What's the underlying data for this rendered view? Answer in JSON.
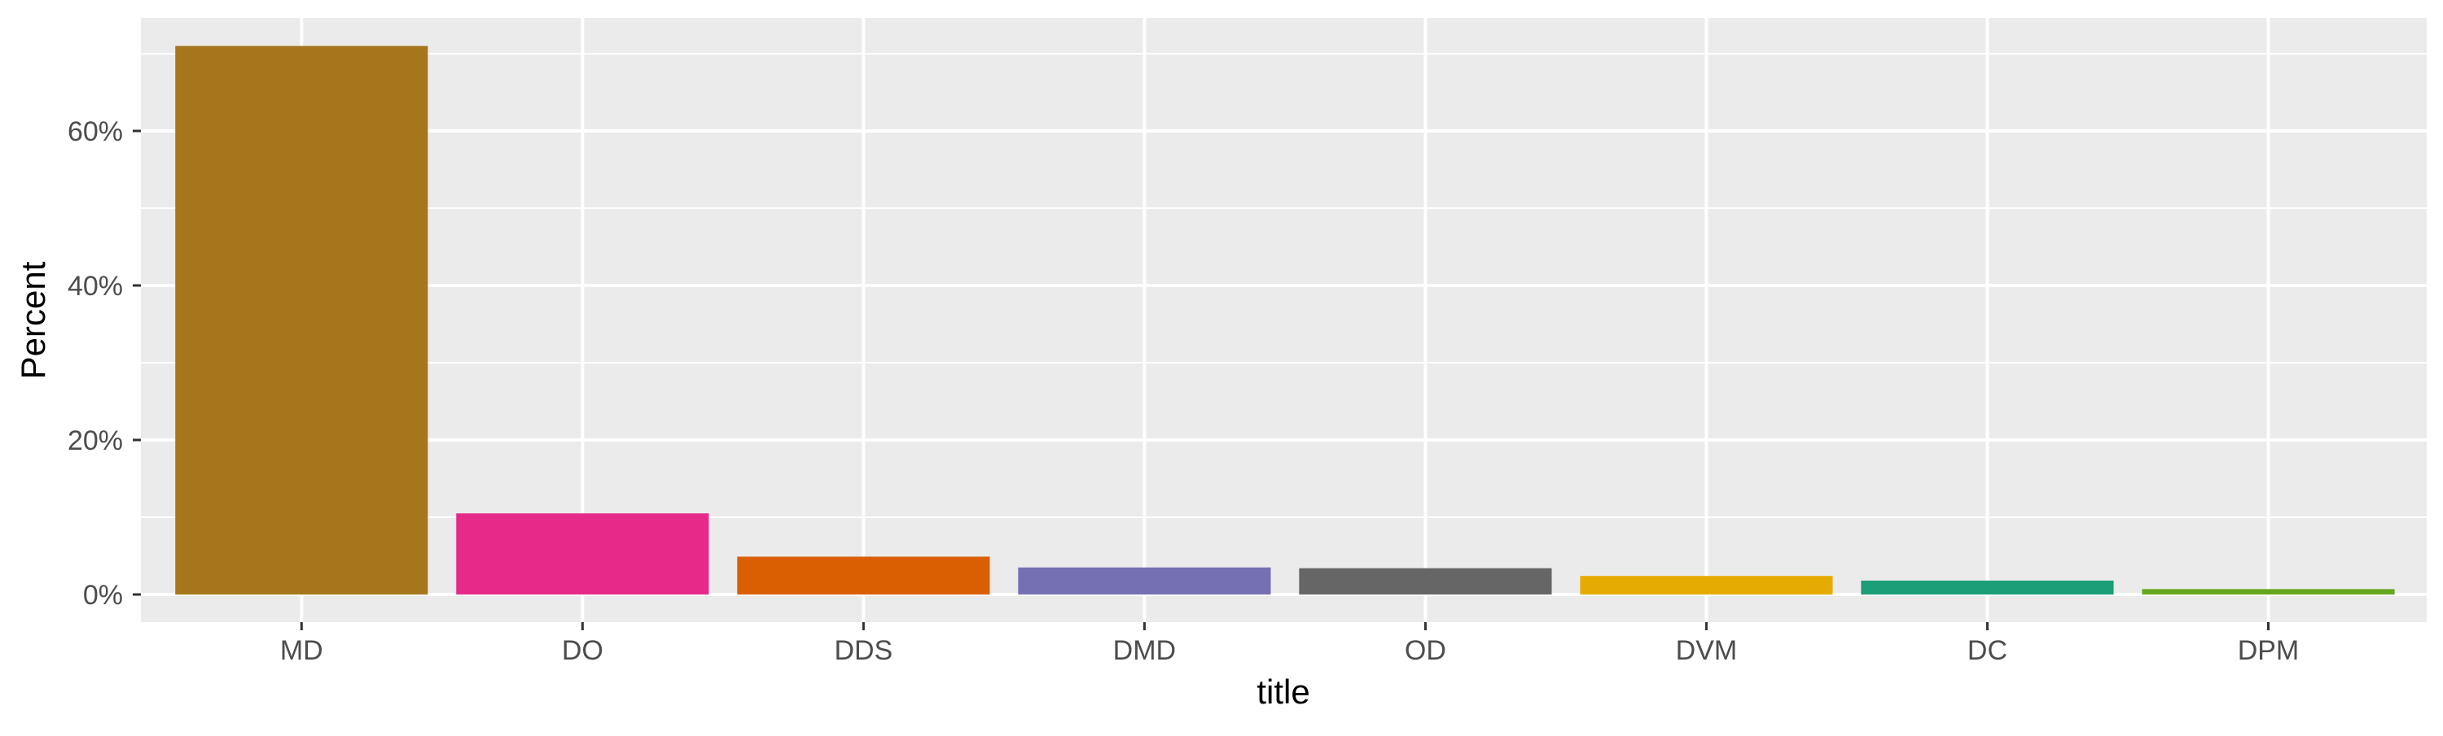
{
  "chart_data": {
    "type": "bar",
    "title": "",
    "xlabel": "title",
    "ylabel": "Percent",
    "categories": [
      "MD",
      "DO",
      "DDS",
      "DMD",
      "OD",
      "DVM",
      "DC",
      "DPM"
    ],
    "values": [
      71.0,
      10.5,
      4.9,
      3.5,
      3.4,
      2.4,
      1.8,
      0.7
    ],
    "colors": [
      "#A6761D",
      "#E7298A",
      "#D95F02",
      "#7570B3",
      "#666666",
      "#E6AB02",
      "#1B9E77",
      "#66A61E"
    ],
    "ylim": [
      0,
      74.6
    ],
    "yticks": [
      0,
      20,
      40,
      60
    ],
    "ytick_labels": [
      "0%",
      "20%",
      "40%",
      "60%"
    ],
    "grid": true,
    "legend": "none",
    "panel_background": "#EBEBEB",
    "grid_color": "#FFFFFF"
  }
}
